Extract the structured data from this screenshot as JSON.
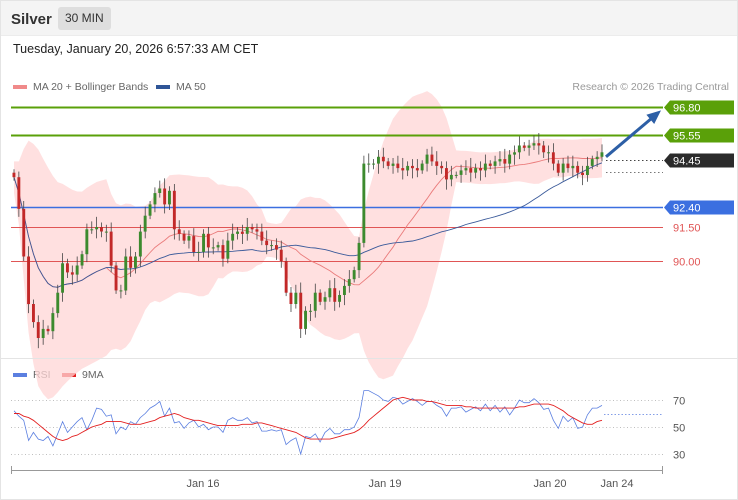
{
  "header": {
    "symbol": "Silver",
    "interval": "30 MIN"
  },
  "timestamp": "Tuesday, January 20, 2026 6:57:33 AM CET",
  "colors": {
    "resistance": "#5aa009",
    "pivot": "#3b6fe0",
    "support": "#e05555",
    "current": "#2b2b2b",
    "bollinger_fill": "#ffd6d6",
    "ma20": "#ea7b7b",
    "ma50": "#3a5a9a",
    "up": "#3c8a2e",
    "down": "#c22828",
    "rsi": "#5b7fe0",
    "rsi_ma": "#e32020",
    "arrow": "#2d5fa6"
  },
  "legend": {
    "ma20_label": "MA 20 + Bollinger Bands",
    "ma50_label": "MA 50"
  },
  "credit": "Research © 2026 Trading Central",
  "chart_data": [
    {
      "type": "candlestick",
      "title": "Silver",
      "interval": "30 MIN",
      "ylim": [
        86.0,
        97.6
      ],
      "series": [
        {
          "name": "MA 20 + Bollinger Bands",
          "kind": "ma_bollinger"
        },
        {
          "name": "MA 50",
          "kind": "ma"
        }
      ],
      "close": [
        93.7,
        92.3,
        90.2,
        88.1,
        87.3,
        86.6,
        87.0,
        86.9,
        87.7,
        88.6,
        89.9,
        89.5,
        89.4,
        89.8,
        90.3,
        91.4,
        91.4,
        91.5,
        91.3,
        91.3,
        89.8,
        88.7,
        88.7,
        90.2,
        89.7,
        90.2,
        91.3,
        92.0,
        92.5,
        93.0,
        93.2,
        92.5,
        93.1,
        91.4,
        91.2,
        90.9,
        91.1,
        90.4,
        90.4,
        91.2,
        90.6,
        90.6,
        90.7,
        90.1,
        90.9,
        91.2,
        91.3,
        91.2,
        91.5,
        91.4,
        91.3,
        90.9,
        90.7,
        90.7,
        90.5,
        90.0,
        88.6,
        88.1,
        88.6,
        87.0,
        87.8,
        87.8,
        88.6,
        88.2,
        88.4,
        88.8,
        88.2,
        88.5,
        88.9,
        89.2,
        89.6,
        90.8,
        94.3,
        94.3,
        94.3,
        94.6,
        94.4,
        94.2,
        94.3,
        94.1,
        94.0,
        94.2,
        94.1,
        94.0,
        94.3,
        94.7,
        94.4,
        94.2,
        94.1,
        93.6,
        93.8,
        93.8,
        94.0,
        94.1,
        93.9,
        94.1,
        94.0,
        94.3,
        94.2,
        94.4,
        94.5,
        94.3,
        94.7,
        94.8,
        95.1,
        95.0,
        95.1,
        95.2,
        95.1,
        94.8,
        94.8,
        94.3,
        93.9,
        94.3,
        94.1,
        94.2,
        93.9,
        93.8,
        94.2,
        94.5,
        94.6,
        94.8
      ],
      "levels": [
        {
          "label": "96.80",
          "value": 96.8,
          "type": "resistance"
        },
        {
          "label": "95.55",
          "value": 95.55,
          "type": "resistance"
        },
        {
          "label": "94.45",
          "value": 94.45,
          "type": "current"
        },
        {
          "label": "92.40",
          "value": 92.4,
          "type": "pivot"
        },
        {
          "label": "91.50",
          "value": 91.5,
          "type": "support"
        },
        {
          "label": "90.00",
          "value": 90.0,
          "type": "support"
        }
      ],
      "projection": {
        "from": 94.6,
        "to": 96.65
      }
    },
    {
      "type": "line",
      "series": [
        {
          "name": "RSI",
          "values": [
            62,
            58,
            55,
            40,
            46,
            41,
            40,
            43,
            36,
            45,
            54,
            46,
            50,
            54,
            57,
            48,
            55,
            64,
            63,
            58,
            59,
            45,
            50,
            48,
            54,
            52,
            57,
            60,
            64,
            66,
            69,
            58,
            64,
            53,
            54,
            49,
            53,
            55,
            50,
            52,
            48,
            50,
            50,
            46,
            55,
            57,
            55,
            55,
            57,
            53,
            54,
            47,
            47,
            48,
            47,
            48,
            37,
            40,
            42,
            30,
            43,
            42,
            45,
            39,
            46,
            49,
            45,
            45,
            48,
            48,
            50,
            57,
            77,
            77,
            75,
            73,
            70,
            69,
            72,
            71,
            67,
            69,
            71,
            69,
            66,
            69,
            69,
            66,
            64,
            58,
            64,
            64,
            65,
            61,
            63,
            65,
            62,
            67,
            62,
            66,
            61,
            65,
            59,
            64,
            70,
            68,
            68,
            71,
            68,
            63,
            64,
            55,
            49,
            58,
            54,
            57,
            49,
            50,
            59,
            64,
            64,
            66
          ]
        },
        {
          "name": "9MA",
          "values": [
            60,
            60,
            58,
            57,
            55,
            52,
            49,
            46,
            43,
            41,
            40,
            41,
            43,
            44,
            46,
            48,
            50,
            51,
            52,
            54,
            54,
            54,
            54,
            53,
            52,
            52,
            52,
            53,
            54,
            55,
            57,
            58,
            59,
            60,
            59,
            57,
            56,
            55,
            55,
            54,
            53,
            52,
            51,
            51,
            51,
            51,
            51,
            52,
            52,
            52,
            53,
            53,
            52,
            51,
            50,
            49,
            48,
            47,
            46,
            44,
            42,
            41,
            41,
            41,
            41,
            41,
            42,
            43,
            44,
            45,
            46,
            48,
            51,
            55,
            58,
            61,
            64,
            67,
            70,
            71,
            72,
            71,
            70,
            70,
            70,
            69,
            69,
            68,
            67,
            66,
            66,
            66,
            66,
            65,
            65,
            64,
            64,
            64,
            64,
            64,
            64,
            64,
            64,
            64,
            65,
            65,
            66,
            67,
            67,
            67,
            67,
            66,
            64,
            62,
            59,
            57,
            55,
            53,
            52,
            52,
            54,
            55
          ]
        }
      ],
      "ylim": [
        22,
        78
      ],
      "ticks": [
        70,
        50,
        30
      ],
      "reference": 60
    }
  ],
  "x_labels": [
    "Jan 16",
    "Jan 19",
    "Jan 20",
    "Jan 24"
  ],
  "rsi_legend": {
    "rsi_label": "RSI",
    "ma_label": "9MA"
  }
}
